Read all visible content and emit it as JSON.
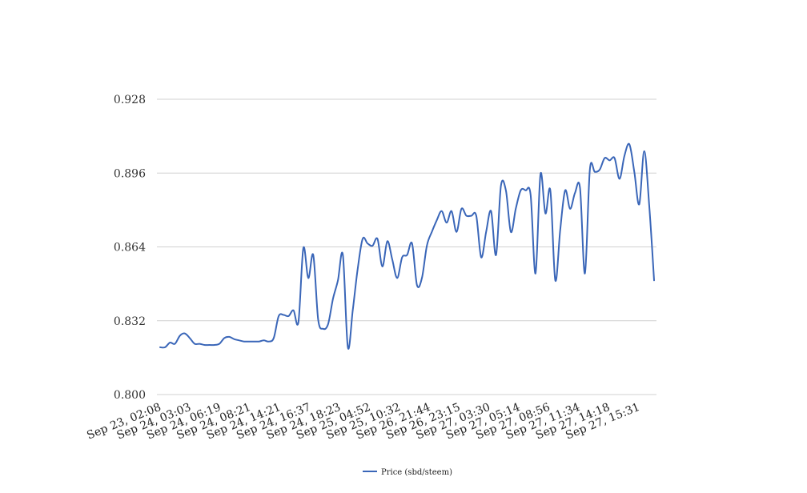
{
  "chart_data": {
    "type": "line",
    "title": "",
    "xlabel": "",
    "ylabel": "",
    "ylim": [
      0.8,
      0.928
    ],
    "yticks": [
      "0.800",
      "0.832",
      "0.864",
      "0.896",
      "0.928"
    ],
    "xtick_labels": [
      "Sep 23, 02:08",
      "Sep 24, 03:03",
      "Sep 24, 06:19",
      "Sep 24, 08:21",
      "Sep 24, 14:21",
      "Sep 24, 16:37",
      "Sep 24, 18:23",
      "Sep 25, 04:52",
      "Sep 25, 10:32",
      "Sep 26, 21:44",
      "Sep 26, 23:15",
      "Sep 27, 03:30",
      "Sep 27, 05:14",
      "Sep 27, 08:56",
      "Sep 27, 11:34",
      "Sep 27, 14:18",
      "Sep 27, 15:31"
    ],
    "grid": true,
    "legend_position": "bottom",
    "series": [
      {
        "name": "Price (sbd/steem)",
        "color": "#3a66b8",
        "values": [
          0.8205,
          0.8205,
          0.8225,
          0.822,
          0.8255,
          0.8265,
          0.8245,
          0.822,
          0.822,
          0.8215,
          0.8215,
          0.8215,
          0.822,
          0.8245,
          0.825,
          0.824,
          0.8235,
          0.823,
          0.823,
          0.823,
          0.823,
          0.8235,
          0.823,
          0.8245,
          0.834,
          0.8345,
          0.834,
          0.8365,
          0.8315,
          0.8635,
          0.8505,
          0.8605,
          0.8325,
          0.8285,
          0.8305,
          0.8415,
          0.8495,
          0.8605,
          0.8205,
          0.8365,
          0.8545,
          0.8675,
          0.8655,
          0.8645,
          0.8675,
          0.8555,
          0.8665,
          0.8585,
          0.8505,
          0.8595,
          0.8605,
          0.8655,
          0.8475,
          0.8505,
          0.8645,
          0.8705,
          0.8755,
          0.8795,
          0.8745,
          0.8795,
          0.8705,
          0.8805,
          0.8775,
          0.8775,
          0.8775,
          0.8595,
          0.8705,
          0.8795,
          0.8605,
          0.8905,
          0.8885,
          0.8705,
          0.8805,
          0.8885,
          0.8885,
          0.8865,
          0.8525,
          0.8955,
          0.8785,
          0.8885,
          0.8495,
          0.8715,
          0.8885,
          0.8805,
          0.8875,
          0.8895,
          0.8525,
          0.8975,
          0.8965,
          0.8975,
          0.9025,
          0.9015,
          0.9025,
          0.8935,
          0.9035,
          0.9085,
          0.8965,
          0.8825,
          0.9055,
          0.8825,
          0.8495
        ]
      }
    ]
  }
}
